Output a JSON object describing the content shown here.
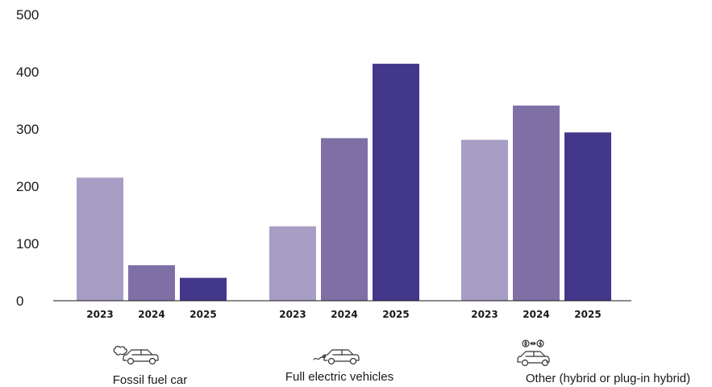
{
  "chart_data": {
    "type": "bar",
    "title": "",
    "xlabel": "",
    "ylabel": "",
    "ylim": [
      0,
      500
    ],
    "yticks": [
      0,
      100,
      200,
      300,
      400,
      500
    ],
    "grid": false,
    "groups": [
      {
        "label": "Fossil fuel car",
        "icon": "fossil-fuel-car-icon",
        "years": [
          "2023",
          "2024",
          "2025"
        ],
        "values": [
          215,
          62,
          40
        ]
      },
      {
        "label": "Full electric vehicles",
        "icon": "electric-car-icon",
        "years": [
          "2023",
          "2024",
          "2025"
        ],
        "values": [
          130,
          284,
          414
        ]
      },
      {
        "label": "Other (hybrid or plug-in hybrid)",
        "icon": "hybrid-car-icon",
        "years": [
          "2023",
          "2024",
          "2025"
        ],
        "values": [
          281,
          341,
          294
        ]
      }
    ],
    "year_colors": {
      "2023": "#a89dc5",
      "2024": "#7e70a5",
      "2025": "#43378b"
    }
  }
}
